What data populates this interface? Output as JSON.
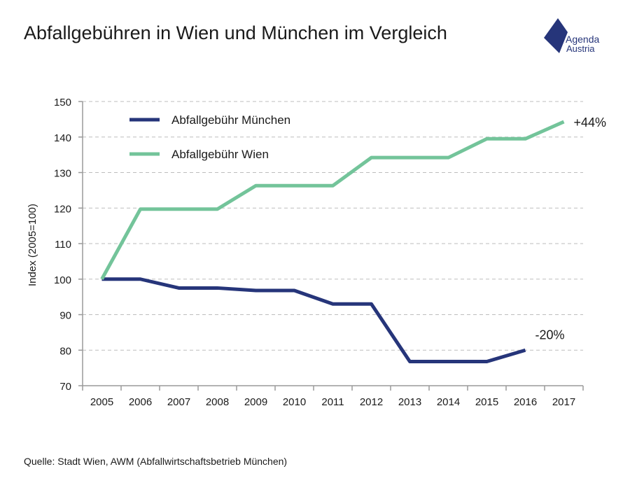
{
  "title": "Abfallgebühren in Wien und München im Vergleich",
  "logo": {
    "line1": "Agenda",
    "line2": "Austria",
    "color": "#26357a"
  },
  "source": "Quelle: Stadt Wien, AWM (Abfallwirtschaftsbetrieb München)",
  "chart_data": {
    "type": "line",
    "ylabel": "Index (2005=100)",
    "ylim": [
      70,
      150
    ],
    "yticks": [
      70,
      80,
      90,
      100,
      110,
      120,
      130,
      140,
      150
    ],
    "grid": true,
    "legend_position": "top-left",
    "categories": [
      "2005",
      "2006",
      "2007",
      "2008",
      "2009",
      "2010",
      "2011",
      "2012",
      "2013",
      "2014",
      "2015",
      "2016",
      "2017"
    ],
    "series": [
      {
        "name": "Abfallgebühr München",
        "color": "#26357a",
        "values": [
          100,
          100,
          97.5,
          97.5,
          96.8,
          96.8,
          93,
          93,
          76.8,
          76.8,
          76.8,
          80,
          null
        ],
        "end_label": "-20%"
      },
      {
        "name": "Abfallgebühr Wien",
        "color": "#73c49a",
        "values": [
          100,
          119.7,
          119.7,
          119.7,
          126.3,
          126.3,
          126.3,
          134.2,
          134.2,
          134.2,
          139.5,
          139.5,
          144.3
        ],
        "end_label": "+44%"
      }
    ]
  }
}
